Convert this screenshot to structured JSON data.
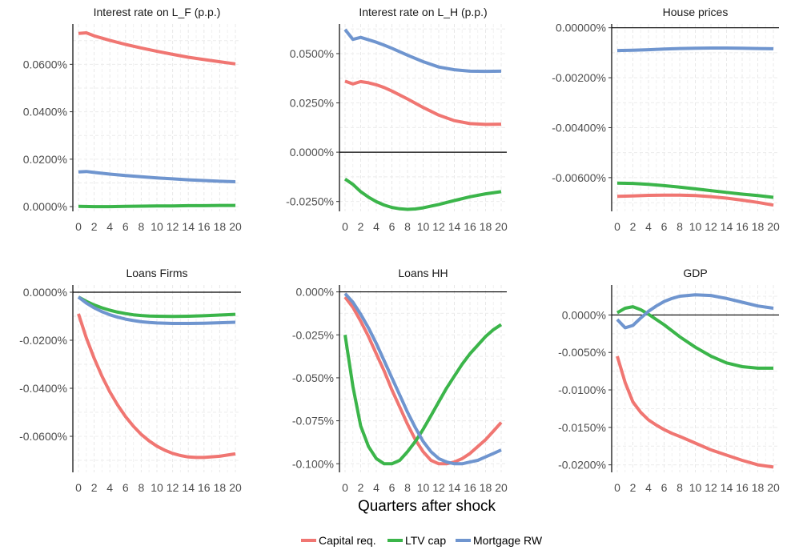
{
  "figure": {
    "x_axis_title": "Quarters after shock"
  },
  "legend": [
    {
      "label": "Capital req.",
      "color": "#F07672"
    },
    {
      "label": "LTV cap",
      "color": "#3BB54A"
    },
    {
      "label": "Mortgage RW",
      "color": "#6F95CF"
    }
  ],
  "chart_data": [
    {
      "type": "line",
      "title": "Interest rate on L_F (p.p.)",
      "xlim": [
        0,
        20
      ],
      "ylim": [
        -2e-05,
        0.00077
      ],
      "x_ticks": [
        0,
        2,
        4,
        6,
        8,
        10,
        12,
        14,
        16,
        18,
        20
      ],
      "y_ticks": [
        {
          "value": 0,
          "label": "0.0000%"
        },
        {
          "value": 0.0002,
          "label": "0.0200%"
        },
        {
          "value": 0.0004,
          "label": "0.0400%"
        },
        {
          "value": 0.0006,
          "label": "0.0600%"
        }
      ],
      "zero_line": false,
      "grid": true,
      "series": [
        {
          "name": "Capital req.",
          "color": "#F07672",
          "x": [
            0,
            1,
            2,
            4,
            6,
            8,
            10,
            12,
            14,
            16,
            18,
            20
          ],
          "y": [
            0.00073,
            0.000733,
            0.00072,
            0.000701,
            0.000684,
            0.000669,
            0.000655,
            0.000642,
            0.00063,
            0.00062,
            0.000611,
            0.000602
          ]
        },
        {
          "name": "LTV cap",
          "color": "#3BB54A",
          "x": [
            0,
            2,
            4,
            6,
            8,
            10,
            12,
            14,
            16,
            18,
            20
          ],
          "y": [
            1e-06,
            0,
            0,
            1e-06,
            2e-06,
            3e-06,
            3e-06,
            4e-06,
            4e-06,
            5e-06,
            5e-06
          ]
        },
        {
          "name": "Mortgage RW",
          "color": "#6F95CF",
          "x": [
            0,
            1,
            2,
            4,
            6,
            8,
            10,
            12,
            14,
            16,
            18,
            20
          ],
          "y": [
            0.000146,
            0.000148,
            0.000144,
            0.000137,
            0.000131,
            0.000126,
            0.000121,
            0.000117,
            0.000113,
            0.00011,
            0.000107,
            0.000105
          ]
        }
      ]
    },
    {
      "type": "line",
      "title": "Interest rate on L_H (p.p.)",
      "xlim": [
        0,
        20
      ],
      "ylim": [
        -0.0003,
        0.00065
      ],
      "x_ticks": [
        0,
        2,
        4,
        6,
        8,
        10,
        12,
        14,
        16,
        18,
        20
      ],
      "y_ticks": [
        {
          "value": -0.00025,
          "label": "-0.0250%"
        },
        {
          "value": 0,
          "label": "0.0000%"
        },
        {
          "value": 0.00025,
          "label": "0.0250%"
        },
        {
          "value": 0.0005,
          "label": "0.0500%"
        }
      ],
      "zero_line": true,
      "grid": true,
      "series": [
        {
          "name": "Capital req.",
          "color": "#F07672",
          "x": [
            0,
            1,
            2,
            3,
            4,
            5,
            6,
            8,
            10,
            12,
            14,
            16,
            18,
            20
          ],
          "y": [
            0.00036,
            0.000346,
            0.000358,
            0.000352,
            0.000342,
            0.000328,
            0.00031,
            0.00027,
            0.000227,
            0.000188,
            0.00016,
            0.000145,
            0.000141,
            0.000142
          ]
        },
        {
          "name": "LTV cap",
          "color": "#3BB54A",
          "x": [
            0,
            1,
            2,
            3,
            4,
            5,
            6,
            7,
            8,
            9,
            10,
            12,
            14,
            16,
            18,
            20
          ],
          "y": [
            -0.000136,
            -0.000163,
            -0.0002,
            -0.000228,
            -0.000251,
            -0.000268,
            -0.00028,
            -0.000287,
            -0.00029,
            -0.000288,
            -0.000282,
            -0.000265,
            -0.000245,
            -0.000226,
            -0.000211,
            -0.0002
          ]
        },
        {
          "name": "Mortgage RW",
          "color": "#6F95CF",
          "x": [
            0,
            1,
            2,
            3,
            4,
            5,
            6,
            8,
            10,
            12,
            14,
            16,
            18,
            20
          ],
          "y": [
            0.000622,
            0.000572,
            0.000582,
            0.00057,
            0.000558,
            0.000543,
            0.000527,
            0.000492,
            0.000459,
            0.000432,
            0.000418,
            0.000411,
            0.00041,
            0.000411
          ]
        }
      ]
    },
    {
      "type": "line",
      "title": "House prices",
      "xlim": [
        0,
        20
      ],
      "ylim": [
        -7.35e-05,
        1.5e-06
      ],
      "x_ticks": [
        0,
        2,
        4,
        6,
        8,
        10,
        12,
        14,
        16,
        18,
        20
      ],
      "y_ticks": [
        {
          "value": 0,
          "label": "0.00000%"
        },
        {
          "value": -2e-05,
          "label": "-0.00200%"
        },
        {
          "value": -4e-05,
          "label": "-0.00400%"
        },
        {
          "value": -6e-05,
          "label": "-0.00600%"
        }
      ],
      "zero_line": true,
      "grid": true,
      "series": [
        {
          "name": "Capital req.",
          "color": "#F07672",
          "x": [
            0,
            2,
            4,
            6,
            8,
            10,
            12,
            14,
            16,
            18,
            20
          ],
          "y": [
            -6.75e-05,
            -6.73e-05,
            -6.71e-05,
            -6.7e-05,
            -6.7e-05,
            -6.72e-05,
            -6.76e-05,
            -6.82e-05,
            -6.9e-05,
            -6.99e-05,
            -7.1e-05
          ]
        },
        {
          "name": "LTV cap",
          "color": "#3BB54A",
          "x": [
            0,
            2,
            4,
            6,
            8,
            10,
            12,
            14,
            16,
            18,
            20
          ],
          "y": [
            -6.22e-05,
            -6.23e-05,
            -6.27e-05,
            -6.32e-05,
            -6.38e-05,
            -6.45e-05,
            -6.52e-05,
            -6.59e-05,
            -6.66e-05,
            -6.72e-05,
            -6.79e-05
          ]
        },
        {
          "name": "Mortgage RW",
          "color": "#6F95CF",
          "x": [
            0,
            2,
            4,
            6,
            8,
            10,
            12,
            14,
            16,
            18,
            20
          ],
          "y": [
            -9.1e-06,
            -9e-06,
            -8.8e-06,
            -8.5e-06,
            -8.3e-06,
            -8.2e-06,
            -8.1e-06,
            -8.1e-06,
            -8.2e-06,
            -8.3e-06,
            -8.4e-06
          ]
        }
      ]
    },
    {
      "type": "line",
      "title": "Loans Firms",
      "xlim": [
        0,
        20
      ],
      "ylim": [
        -0.00075,
        3e-05
      ],
      "x_ticks": [
        0,
        2,
        4,
        6,
        8,
        10,
        12,
        14,
        16,
        18,
        20
      ],
      "y_ticks": [
        {
          "value": 0,
          "label": "0.0000%"
        },
        {
          "value": -0.0002,
          "label": "-0.0200%"
        },
        {
          "value": -0.0004,
          "label": "-0.0400%"
        },
        {
          "value": -0.0006,
          "label": "-0.0600%"
        }
      ],
      "zero_line": true,
      "grid": true,
      "series": [
        {
          "name": "Capital req.",
          "color": "#F07672",
          "x": [
            0,
            1,
            2,
            3,
            4,
            5,
            6,
            7,
            8,
            9,
            10,
            11,
            12,
            13,
            14,
            15,
            16,
            18,
            20
          ],
          "y": [
            -9e-05,
            -0.00019,
            -0.000275,
            -0.00035,
            -0.000415,
            -0.00047,
            -0.000518,
            -0.000558,
            -0.000592,
            -0.000619,
            -0.000641,
            -0.000658,
            -0.000671,
            -0.00068,
            -0.000686,
            -0.000688,
            -0.000688,
            -0.000683,
            -0.000673
          ]
        },
        {
          "name": "LTV cap",
          "color": "#3BB54A",
          "x": [
            0,
            1,
            2,
            3,
            4,
            5,
            6,
            7,
            8,
            9,
            10,
            12,
            14,
            16,
            18,
            20
          ],
          "y": [
            -2e-05,
            -3.8e-05,
            -5.3e-05,
            -6.5e-05,
            -7.5e-05,
            -8.3e-05,
            -8.9e-05,
            -9.4e-05,
            -9.7e-05,
            -9.9e-05,
            -0.0001,
            -0.000101,
            -0.0001,
            -9.8e-05,
            -9.5e-05,
            -9.2e-05
          ]
        },
        {
          "name": "Mortgage RW",
          "color": "#6F95CF",
          "x": [
            0,
            1,
            2,
            3,
            4,
            5,
            6,
            7,
            8,
            9,
            10,
            12,
            14,
            16,
            18,
            20
          ],
          "y": [
            -2e-05,
            -4.5e-05,
            -6.5e-05,
            -8.1e-05,
            -9.4e-05,
            -0.000104,
            -0.000112,
            -0.000118,
            -0.000123,
            -0.000126,
            -0.000128,
            -0.00013,
            -0.00013,
            -0.000129,
            -0.000127,
            -0.000125
          ]
        }
      ]
    },
    {
      "type": "line",
      "title": "Loans HH",
      "xlim": [
        0,
        20
      ],
      "ylim": [
        -0.00105,
        4e-05
      ],
      "x_ticks": [
        0,
        2,
        4,
        6,
        8,
        10,
        12,
        14,
        16,
        18,
        20
      ],
      "y_ticks": [
        {
          "value": 0,
          "label": "0.000%"
        },
        {
          "value": -0.00025,
          "label": "-0.025%"
        },
        {
          "value": -0.0005,
          "label": "-0.050%"
        },
        {
          "value": -0.00075,
          "label": "-0.075%"
        },
        {
          "value": -0.001,
          "label": "-0.100%"
        }
      ],
      "zero_line": true,
      "grid": true,
      "series": [
        {
          "name": "Capital req.",
          "color": "#F07672",
          "x": [
            0,
            1,
            2,
            3,
            4,
            5,
            6,
            7,
            8,
            9,
            10,
            11,
            12,
            13,
            14,
            15,
            16,
            17,
            18,
            19,
            20
          ],
          "y": [
            -3e-05,
            -9e-05,
            -0.00017,
            -0.00026,
            -0.00036,
            -0.00046,
            -0.00057,
            -0.00067,
            -0.00077,
            -0.00086,
            -0.00093,
            -0.00098,
            -0.001,
            -0.001,
            -0.00099,
            -0.00097,
            -0.00094,
            -0.0009,
            -0.00086,
            -0.00081,
            -0.00076
          ]
        },
        {
          "name": "LTV cap",
          "color": "#3BB54A",
          "x": [
            0,
            1,
            2,
            3,
            4,
            5,
            6,
            7,
            8,
            9,
            10,
            11,
            12,
            13,
            14,
            15,
            16,
            17,
            18,
            19,
            20
          ],
          "y": [
            -0.00025,
            -0.00055,
            -0.00078,
            -0.0009,
            -0.00097,
            -0.001,
            -0.001,
            -0.00098,
            -0.00093,
            -0.00087,
            -0.0008,
            -0.00072,
            -0.00064,
            -0.00056,
            -0.00049,
            -0.00042,
            -0.00036,
            -0.00031,
            -0.00026,
            -0.00022,
            -0.00019
          ]
        },
        {
          "name": "Mortgage RW",
          "color": "#6F95CF",
          "x": [
            0,
            1,
            2,
            3,
            4,
            5,
            6,
            7,
            8,
            9,
            10,
            11,
            12,
            13,
            14,
            15,
            16,
            17,
            18,
            19,
            20
          ],
          "y": [
            -1e-05,
            -6e-05,
            -0.00013,
            -0.00021,
            -0.0003,
            -0.0004,
            -0.0005,
            -0.0006,
            -0.0007,
            -0.00079,
            -0.00087,
            -0.00093,
            -0.00097,
            -0.00099,
            -0.001,
            -0.001,
            -0.00099,
            -0.00098,
            -0.00096,
            -0.00094,
            -0.00092
          ]
        }
      ]
    },
    {
      "type": "line",
      "title": "GDP",
      "xlim": [
        0,
        20
      ],
      "ylim": [
        -0.00021,
        4e-05
      ],
      "x_ticks": [
        0,
        2,
        4,
        6,
        8,
        10,
        12,
        14,
        16,
        18,
        20
      ],
      "y_ticks": [
        {
          "value": 0,
          "label": "0.0000%"
        },
        {
          "value": -5e-05,
          "label": "-0.0050%"
        },
        {
          "value": -0.0001,
          "label": "-0.0100%"
        },
        {
          "value": -0.00015,
          "label": "-0.0150%"
        },
        {
          "value": -0.0002,
          "label": "-0.0200%"
        }
      ],
      "zero_line": true,
      "grid": true,
      "series": [
        {
          "name": "Capital req.",
          "color": "#F07672",
          "x": [
            0,
            1,
            2,
            3,
            4,
            5,
            6,
            7,
            8,
            10,
            12,
            14,
            16,
            18,
            20
          ],
          "y": [
            -5.5e-05,
            -9e-05,
            -0.000116,
            -0.00013,
            -0.00014,
            -0.000147,
            -0.000153,
            -0.000158,
            -0.000162,
            -0.000171,
            -0.00018,
            -0.000187,
            -0.000194,
            -0.0002,
            -0.000203
          ]
        },
        {
          "name": "LTV cap",
          "color": "#3BB54A",
          "x": [
            0,
            1,
            2,
            3,
            4,
            5,
            6,
            7,
            8,
            10,
            12,
            14,
            16,
            18,
            20
          ],
          "y": [
            3e-06,
            9e-06,
            1.1e-05,
            7e-06,
            1e-06,
            -6e-06,
            -1.3e-05,
            -2.1e-05,
            -2.9e-05,
            -4.3e-05,
            -5.5e-05,
            -6.4e-05,
            -6.9e-05,
            -7.1e-05,
            -7.1e-05
          ]
        },
        {
          "name": "Mortgage RW",
          "color": "#6F95CF",
          "x": [
            0,
            1,
            2,
            3,
            4,
            5,
            6,
            7,
            8,
            10,
            12,
            14,
            16,
            18,
            20
          ],
          "y": [
            -6e-06,
            -1.7e-05,
            -1.4e-05,
            -4e-06,
            5e-06,
            1.2e-05,
            1.8e-05,
            2.2e-05,
            2.5e-05,
            2.7e-05,
            2.6e-05,
            2.2e-05,
            1.7e-05,
            1.2e-05,
            9e-06
          ]
        }
      ]
    }
  ]
}
